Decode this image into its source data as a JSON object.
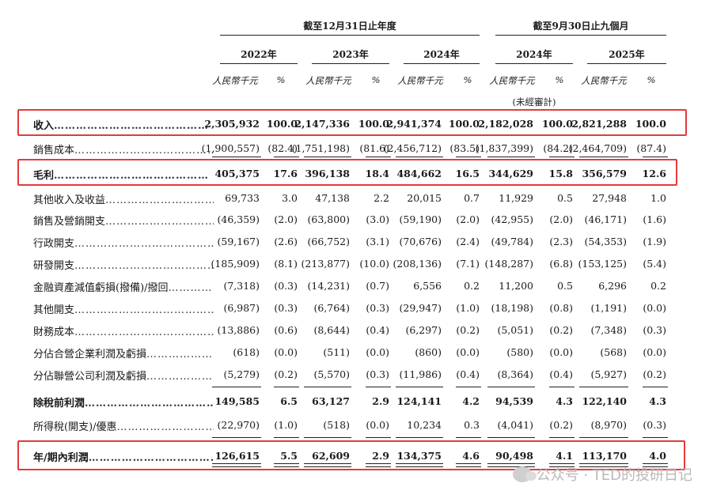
{
  "header": {
    "group_fy": "截至12月31日止年度",
    "group_9m": "截至9月30日止九個月",
    "years": [
      "2022年",
      "2023年",
      "2024年",
      "2024年",
      "2025年"
    ],
    "unit_rmb": "人民幣千元",
    "unit_pct": "%",
    "unaudited": "(未經審計)"
  },
  "rows": [
    {
      "label": "收入",
      "bold": true,
      "values": [
        "2,305,932",
        "100.0",
        "2,147,336",
        "100.0",
        "2,941,374",
        "100.0",
        "2,182,028",
        "100.0",
        "2,821,288",
        "100.0"
      ]
    },
    {
      "label": "銷售成本",
      "bold": false,
      "values": [
        "(1,900,557)",
        "(82.4)",
        "(1,751,198)",
        "(81.6)",
        "(2,456,712)",
        "(83.5)",
        "(1,837,399)",
        "(84.2)",
        "(2,464,709)",
        "(87.4)"
      ]
    },
    {
      "label": "毛利",
      "bold": true,
      "values": [
        "405,375",
        "17.6",
        "396,138",
        "18.4",
        "484,662",
        "16.5",
        "344,629",
        "15.8",
        "356,579",
        "12.6"
      ]
    },
    {
      "label": "其他收入及收益",
      "bold": false,
      "values": [
        "69,733",
        "3.0",
        "47,138",
        "2.2",
        "20,015",
        "0.7",
        "11,929",
        "0.5",
        "27,948",
        "1.0"
      ]
    },
    {
      "label": "銷售及營銷開支",
      "bold": false,
      "values": [
        "(46,359)",
        "(2.0)",
        "(63,800)",
        "(3.0)",
        "(59,190)",
        "(2.0)",
        "(42,955)",
        "(2.0)",
        "(46,171)",
        "(1.6)"
      ]
    },
    {
      "label": "行政開支",
      "bold": false,
      "values": [
        "(59,167)",
        "(2.6)",
        "(66,752)",
        "(3.1)",
        "(70,676)",
        "(2.4)",
        "(49,784)",
        "(2.3)",
        "(54,353)",
        "(1.9)"
      ]
    },
    {
      "label": "研發開支",
      "bold": false,
      "values": [
        "(185,909)",
        "(8.1)",
        "(213,877)",
        "(10.0)",
        "(208,136)",
        "(7.1)",
        "(148,287)",
        "(6.8)",
        "(153,125)",
        "(5.4)"
      ]
    },
    {
      "label": "金融資產減值虧損(撥備)/撥回",
      "bold": false,
      "values": [
        "(7,318)",
        "(0.3)",
        "(14,231)",
        "(0.7)",
        "6,556",
        "0.2",
        "11,200",
        "0.5",
        "6,296",
        "0.2"
      ]
    },
    {
      "label": "其他開支",
      "bold": false,
      "values": [
        "(6,987)",
        "(0.3)",
        "(6,764)",
        "(0.3)",
        "(29,947)",
        "(1.0)",
        "(18,198)",
        "(0.8)",
        "(1,191)",
        "(0.0)"
      ]
    },
    {
      "label": "財務成本",
      "bold": false,
      "values": [
        "(13,886)",
        "(0.6)",
        "(8,644)",
        "(0.4)",
        "(6,297)",
        "(0.2)",
        "(5,051)",
        "(0.2)",
        "(7,348)",
        "(0.3)"
      ]
    },
    {
      "label": "分佔合營企業利潤及虧損",
      "bold": false,
      "values": [
        "(618)",
        "(0.0)",
        "(511)",
        "(0.0)",
        "(860)",
        "(0.0)",
        "(580)",
        "(0.0)",
        "(568)",
        "(0.0)"
      ]
    },
    {
      "label": "分佔聯營公司利潤及虧損",
      "bold": false,
      "values": [
        "(5,279)",
        "(0.2)",
        "(5,570)",
        "(0.3)",
        "(11,986)",
        "(0.4)",
        "(8,364)",
        "(0.4)",
        "(5,927)",
        "(0.2)"
      ]
    },
    {
      "label": "除稅前利潤",
      "bold": true,
      "values": [
        "149,585",
        "6.5",
        "63,127",
        "2.9",
        "124,141",
        "4.2",
        "94,539",
        "4.3",
        "122,140",
        "4.3"
      ]
    },
    {
      "label": "所得稅(開支)/優惠",
      "bold": false,
      "values": [
        "(22,970)",
        "(1.0)",
        "(518)",
        "(0.0)",
        "10,234",
        "0.3",
        "(4,041)",
        "(0.2)",
        "(8,970)",
        "(0.3)"
      ]
    },
    {
      "label": "年/期內利潤",
      "bold": true,
      "values": [
        "126,615",
        "5.5",
        "62,609",
        "2.9",
        "134,375",
        "4.6",
        "90,498",
        "4.1",
        "113,170",
        "4.0"
      ]
    }
  ],
  "leader": "……………………………………",
  "watermark": "公众号 · TED的投研日记"
}
